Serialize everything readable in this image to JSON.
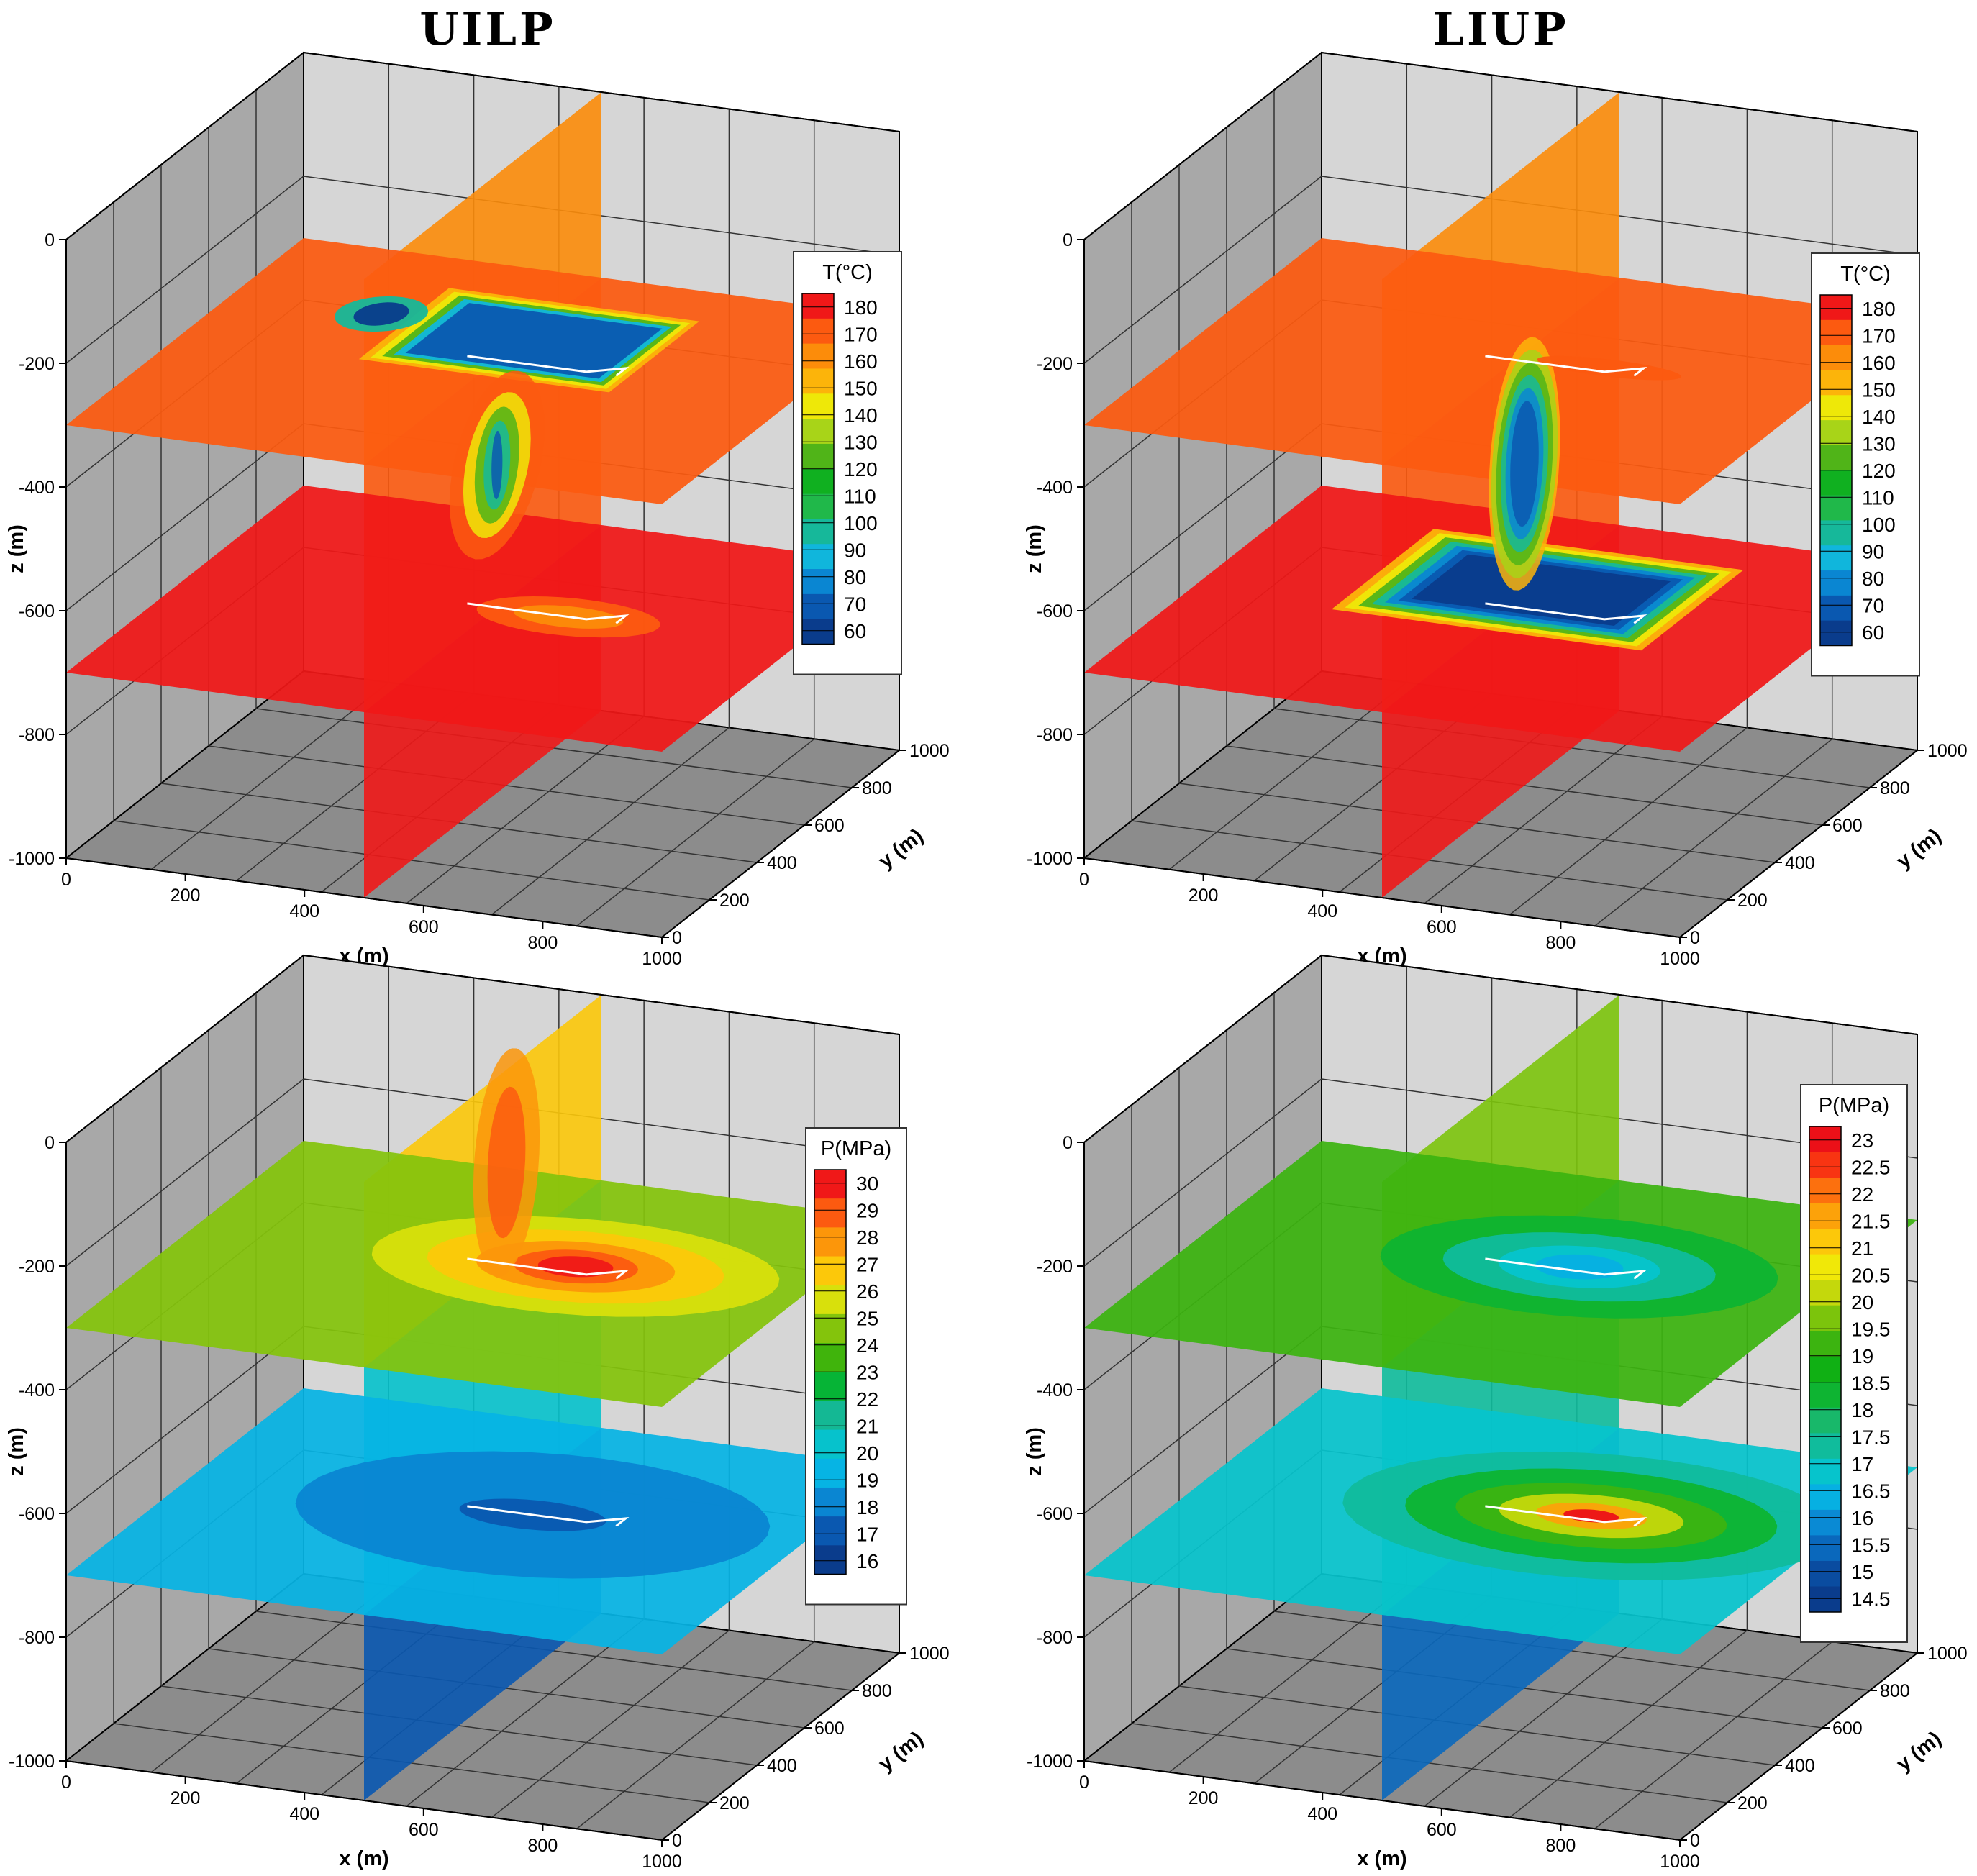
{
  "titles": [
    "UILP",
    "LIUP"
  ],
  "palettes": {
    "T": [
      "#0a3c8c",
      "#0a58b0",
      "#0a86d2",
      "#10b6dc",
      "#16b89a",
      "#20b84a",
      "#10b020",
      "#50b418",
      "#a8d418",
      "#eee808",
      "#fcb40a",
      "#fc8c0a",
      "#fc5a10",
      "#f01818"
    ],
    "P": [
      "#0a3c8c",
      "#0a58b0",
      "#0a86d2",
      "#06b4e4",
      "#06c2cc",
      "#14b894",
      "#06b436",
      "#40b40c",
      "#84c40c",
      "#d8e00c",
      "#fcc80a",
      "#fc960a",
      "#fc5a10",
      "#f01818"
    ],
    "PL": [
      "#0a3c8c",
      "#0a4ca0",
      "#0a68bc",
      "#0a8ad4",
      "#06b0e2",
      "#06c4cc",
      "#10bc9c",
      "#18b86a",
      "#0eb432",
      "#10b014",
      "#3cb410",
      "#7cc40c",
      "#c4d80c",
      "#f0e808",
      "#fcc80a",
      "#fca20a",
      "#fc700e",
      "#f83412",
      "#ec1018"
    ]
  },
  "chart_data": [
    {
      "type": "3d-contour-slices",
      "panel_title": "UILP",
      "variable": "T",
      "legend_title": "T(°C)",
      "levels": [
        180,
        170,
        160,
        150,
        140,
        130,
        120,
        110,
        100,
        90,
        80,
        70,
        60
      ],
      "xlabel": "x (m)",
      "ylabel": "y (m)",
      "zlabel": "z (m)",
      "xlim": [
        0,
        1000
      ],
      "ylim": [
        0,
        1000
      ],
      "zlim": [
        -1000,
        0
      ],
      "xticks": [
        0,
        200,
        400,
        600,
        800,
        1000
      ],
      "yticks": [
        0,
        200,
        400,
        600,
        800,
        1000
      ],
      "zticks": [
        0,
        -200,
        -400,
        -600,
        -800,
        -1000
      ],
      "slices": [
        {
          "plane": "z",
          "position": -300,
          "background": 170
        },
        {
          "plane": "z",
          "position": -700,
          "background": 175
        },
        {
          "plane": "x",
          "position": 500,
          "background": 160
        }
      ],
      "grid": true
    },
    {
      "type": "3d-contour-slices",
      "panel_title": "LIUP",
      "variable": "T",
      "legend_title": "T(°C)",
      "levels": [
        180,
        170,
        160,
        150,
        140,
        130,
        120,
        110,
        100,
        90,
        80,
        70,
        60
      ],
      "xlabel": "x (m)",
      "ylabel": "y (m)",
      "zlabel": "z (m)",
      "xlim": [
        0,
        1000
      ],
      "ylim": [
        0,
        1000
      ],
      "zlim": [
        -1000,
        0
      ],
      "xticks": [
        0,
        200,
        400,
        600,
        800,
        1000
      ],
      "yticks": [
        0,
        200,
        400,
        600,
        800,
        1000
      ],
      "zticks": [
        0,
        -200,
        -400,
        -600,
        -800,
        -1000
      ],
      "slices": [
        {
          "plane": "z",
          "position": -300,
          "background": 170
        },
        {
          "plane": "z",
          "position": -700,
          "background": 175
        },
        {
          "plane": "x",
          "position": 500,
          "background": 160
        }
      ],
      "grid": true
    },
    {
      "type": "3d-contour-slices",
      "variable": "P",
      "legend_title": "P(MPa)",
      "levels": [
        30,
        29,
        28,
        27,
        26,
        25,
        24,
        23,
        22,
        21,
        20,
        19,
        18,
        17,
        16
      ],
      "xlabel": "x (m)",
      "ylabel": "y (m)",
      "zlabel": "z (m)",
      "xlim": [
        0,
        1000
      ],
      "ylim": [
        0,
        1000
      ],
      "zlim": [
        -1000,
        0
      ],
      "xticks": [
        0,
        200,
        400,
        600,
        800,
        1000
      ],
      "yticks": [
        0,
        200,
        400,
        600,
        800,
        1000
      ],
      "zticks": [
        0,
        -200,
        -400,
        -600,
        -800,
        -1000
      ],
      "slices": [
        {
          "plane": "z",
          "position": -300,
          "background": 24.5
        },
        {
          "plane": "z",
          "position": -700,
          "background": 19.5
        },
        {
          "plane": "x",
          "position": 500,
          "background": 26
        }
      ],
      "grid": true
    },
    {
      "type": "3d-contour-slices",
      "variable": "P",
      "legend_title": "P(MPa)",
      "levels": [
        23,
        22.5,
        22,
        21.5,
        21,
        20.5,
        20,
        19.5,
        19,
        18.5,
        18,
        17.5,
        17,
        16.5,
        16,
        15.5,
        15,
        14.5
      ],
      "xlabel": "x (m)",
      "ylabel": "y (m)",
      "zlabel": "z (m)",
      "xlim": [
        0,
        1000
      ],
      "ylim": [
        0,
        1000
      ],
      "zlim": [
        -1000,
        0
      ],
      "xticks": [
        0,
        200,
        400,
        600,
        800,
        1000
      ],
      "yticks": [
        0,
        200,
        400,
        600,
        800,
        1000
      ],
      "zticks": [
        0,
        -200,
        -400,
        -600,
        -800,
        -1000
      ],
      "slices": [
        {
          "plane": "z",
          "position": -300,
          "background": 19
        },
        {
          "plane": "z",
          "position": -700,
          "background": 16.8
        },
        {
          "plane": "x",
          "position": 500,
          "background": 19.8
        }
      ],
      "grid": true
    }
  ]
}
